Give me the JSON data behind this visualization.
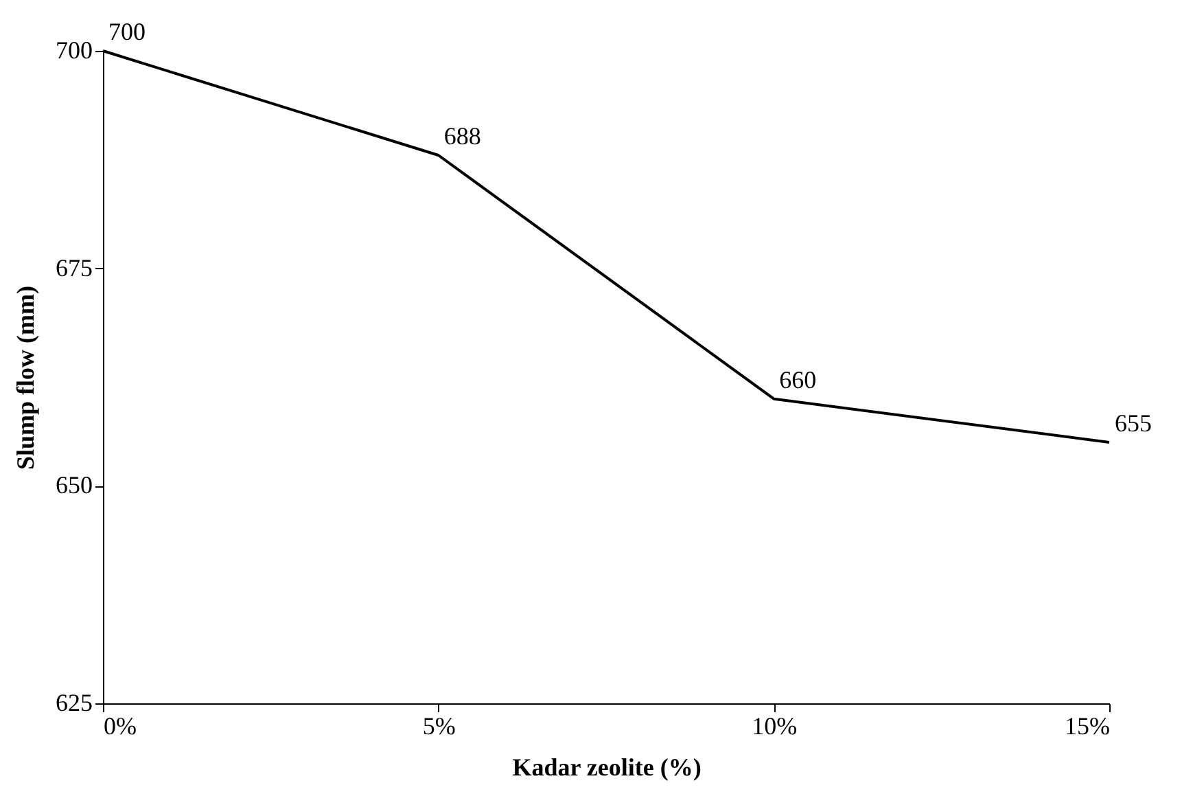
{
  "chart_data": {
    "type": "line",
    "xlabel": "Kadar zeolite (%)",
    "ylabel": "Slump flow (mm)",
    "x": [
      0,
      5,
      10,
      15
    ],
    "series": [
      {
        "color": "#000000",
        "values": [
          700,
          688,
          660,
          655
        ]
      }
    ],
    "xlim": [
      0,
      15
    ],
    "xticks": [
      {
        "value": 0,
        "label": "0%"
      },
      {
        "value": 5,
        "label": "5%"
      },
      {
        "value": 10,
        "label": "10%"
      },
      {
        "value": 15,
        "label": "15%"
      }
    ],
    "ylim": [
      625,
      700
    ],
    "yticks": [
      625,
      650,
      675,
      700
    ],
    "grid": false,
    "marker": "none",
    "line_style": "solid",
    "data_labels": true
  }
}
